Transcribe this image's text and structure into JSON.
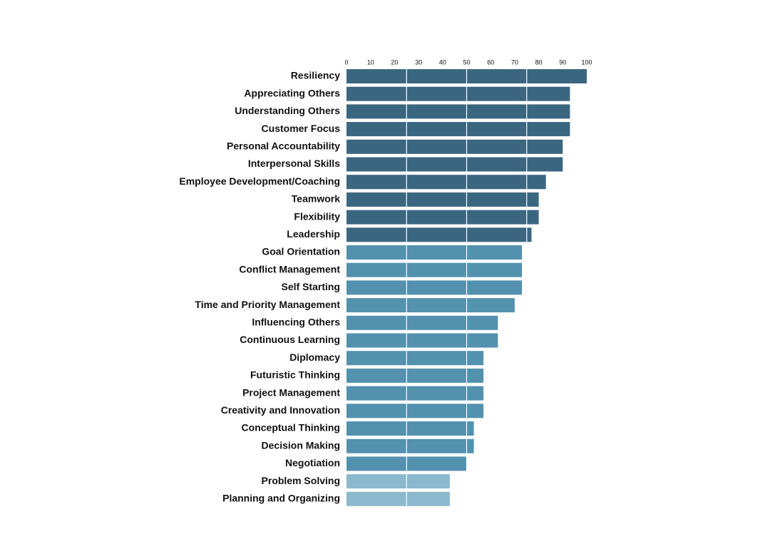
{
  "chart_data": {
    "type": "barh",
    "categories": [
      "Resiliency",
      "Appreciating Others",
      "Understanding Others",
      "Customer Focus",
      "Personal Accountability",
      "Interpersonal Skills",
      "Employee Development/Coaching",
      "Teamwork",
      "Flexibility",
      "Leadership",
      "Goal Orientation",
      "Conflict Management",
      "Self Starting",
      "Time and Priority Management",
      "Influencing Others",
      "Continuous Learning",
      "Diplomacy",
      "Futuristic Thinking",
      "Project Management",
      "Creativity and Innovation",
      "Conceptual Thinking",
      "Decision Making",
      "Negotiation",
      "Problem Solving",
      "Planning and Organizing"
    ],
    "values": [
      100,
      93,
      93,
      93,
      90,
      90,
      83,
      80,
      80,
      77,
      73,
      73,
      73,
      70,
      63,
      63,
      57,
      57,
      57,
      57,
      53,
      53,
      50,
      43,
      43
    ],
    "colors": [
      "#3b6680",
      "#3b6680",
      "#3b6680",
      "#3b6680",
      "#3b6680",
      "#3b6680",
      "#3b6680",
      "#3b6680",
      "#3b6680",
      "#3b6680",
      "#5391ae",
      "#5391ae",
      "#5391ae",
      "#5391ae",
      "#5391ae",
      "#5391ae",
      "#5391ae",
      "#5391ae",
      "#5391ae",
      "#5391ae",
      "#5391ae",
      "#5391ae",
      "#5391ae",
      "#8bb8cc",
      "#8bb8cc"
    ],
    "xlim": [
      0,
      100
    ],
    "xticks": [
      0,
      10,
      20,
      30,
      40,
      50,
      60,
      70,
      80,
      90,
      100
    ],
    "grid_lines": [
      25,
      50,
      75
    ],
    "grid_color": "#ffffff"
  }
}
